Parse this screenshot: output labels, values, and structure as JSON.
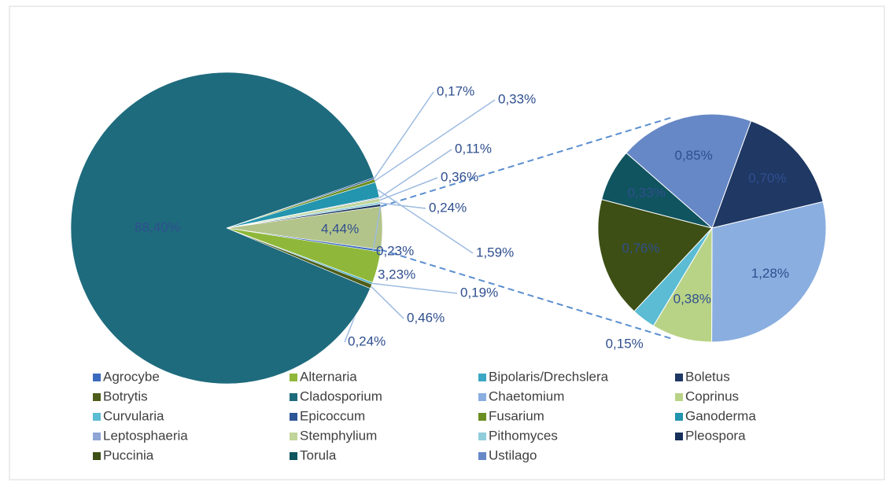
{
  "chart_data": {
    "type": "pie-of-pie",
    "categories": [
      "Agrocybe",
      "Alternaria",
      "Bipolaris/Drechslera",
      "Boletus",
      "Botrytis",
      "Cladosporium",
      "Chaetomium",
      "Coprinus",
      "Curvularia",
      "Epicoccum",
      "Fusarium",
      "Ganoderma",
      "Leptosphaeria",
      "Stemphylium",
      "Pithomyces",
      "Pleospora",
      "Puccinia",
      "Torula",
      "Ustilago"
    ],
    "values": [
      0.24,
      3.23,
      0.19,
      0.7,
      0.46,
      88.4,
      1.28,
      0.38,
      0.15,
      0.17,
      0.33,
      1.59,
      0.11,
      0.36,
      0.24,
      0.23,
      0.76,
      0.33,
      0.85
    ],
    "value_labels": [
      "0,24%",
      "3,23%",
      "0,19%",
      "0,70%",
      "0,46%",
      "88,40%",
      "1,28%",
      "0,38%",
      "0,15%",
      "0,17%",
      "0,33%",
      "1,59%",
      "0,11%",
      "0,36%",
      "0,24%",
      "0,23%",
      "0,76%",
      "0,33%",
      "0,85%"
    ],
    "colors": [
      "#3a6bbf",
      "#8fb83a",
      "#3aa8c4",
      "#1f3864",
      "#4d5e1a",
      "#1e6b7d",
      "#8aaee0",
      "#b9d386",
      "#5bbcd4",
      "#2e5597",
      "#6b8e23",
      "#2395ae",
      "#8ea5d6",
      "#c1d59a",
      "#92cddc",
      "#17305a",
      "#3d4f14",
      "#10545f",
      "#6688c6"
    ],
    "secondary": [
      false,
      false,
      false,
      true,
      false,
      false,
      true,
      true,
      true,
      false,
      false,
      false,
      false,
      false,
      false,
      false,
      true,
      true,
      true
    ],
    "other_value": 4.44,
    "other_label": "4,44%",
    "other_color": "#b3c48a",
    "legend": "bottom"
  }
}
